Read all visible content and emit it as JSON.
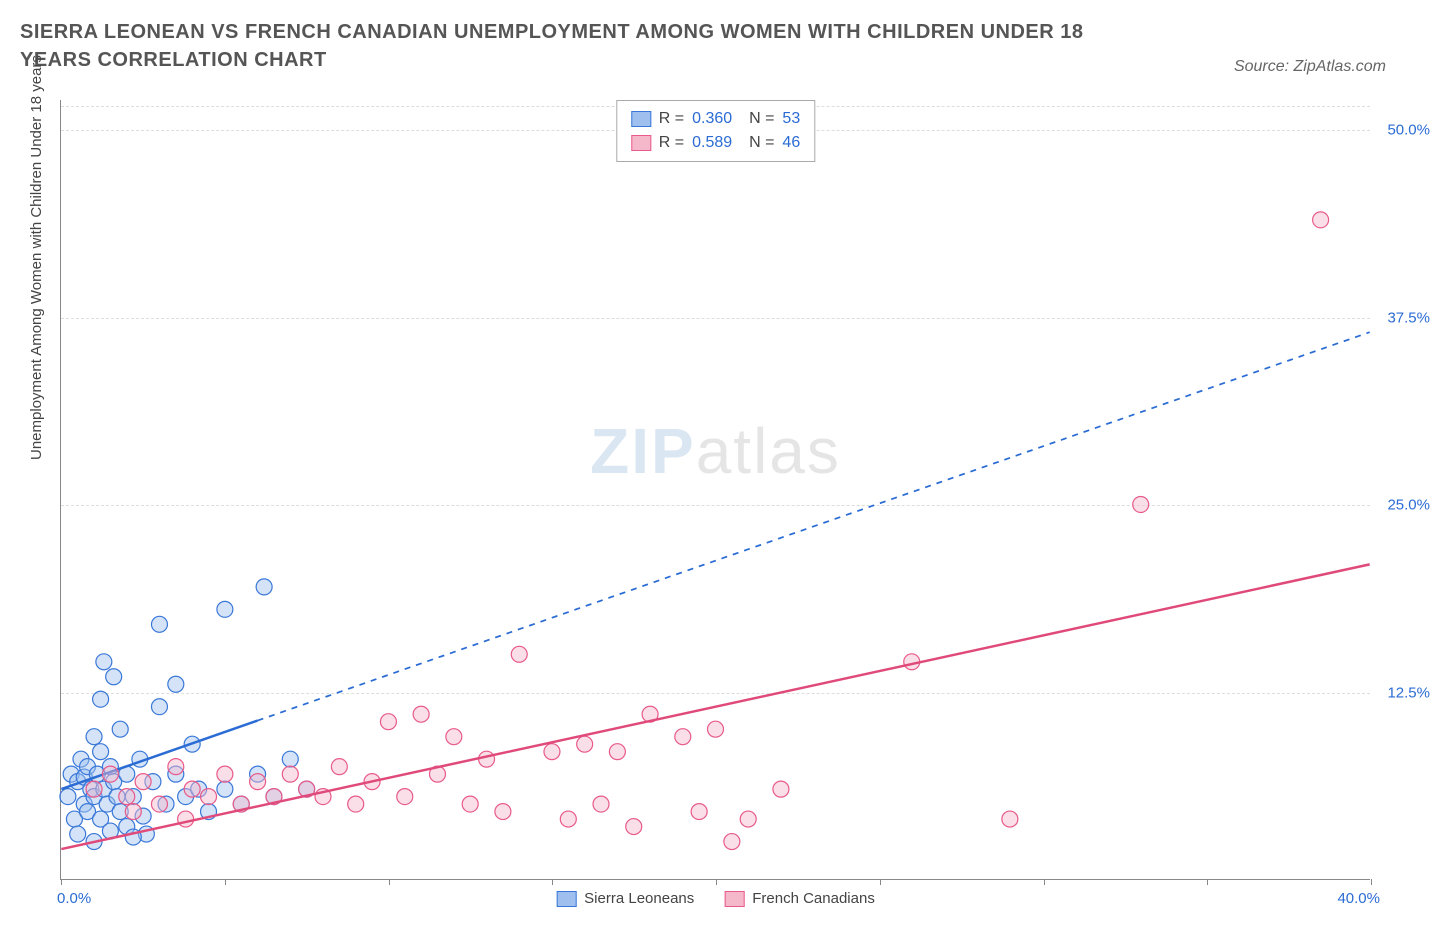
{
  "title": "SIERRA LEONEAN VS FRENCH CANADIAN UNEMPLOYMENT AMONG WOMEN WITH CHILDREN UNDER 18 YEARS CORRELATION CHART",
  "source": "Source: ZipAtlas.com",
  "ylabel": "Unemployment Among Women with Children Under 18 years",
  "watermark_bold": "ZIP",
  "watermark_light": "atlas",
  "chart": {
    "type": "scatter",
    "xlim": [
      0,
      40
    ],
    "ylim": [
      0,
      52
    ],
    "xticks": [
      0,
      5,
      10,
      15,
      20,
      25,
      30,
      35,
      40
    ],
    "yticks": [
      12.5,
      25.0,
      37.5,
      50.0
    ],
    "ytick_labels": [
      "12.5%",
      "25.0%",
      "37.5%",
      "50.0%"
    ],
    "xaxis_min_label": "0.0%",
    "xaxis_max_label": "40.0%",
    "background_color": "#ffffff",
    "grid_color": "#dddddd",
    "axis_color": "#888888",
    "watermark_color": "#cccccc",
    "series": [
      {
        "name": "Sierra Leoneans",
        "color_fill": "#9fc0ef",
        "color_stroke": "#3a78d8",
        "fill_opacity": 0.45,
        "marker_radius": 8,
        "R": "0.360",
        "N": "53",
        "trend": {
          "x1": 0,
          "y1": 6.0,
          "x2": 40,
          "y2": 36.5,
          "solid_until_x": 6.0,
          "stroke": "#2b6cd4",
          "stroke_width": 2.5
        },
        "points": [
          [
            0.2,
            5.5
          ],
          [
            0.3,
            7.0
          ],
          [
            0.4,
            4.0
          ],
          [
            0.5,
            6.5
          ],
          [
            0.5,
            3.0
          ],
          [
            0.6,
            8.0
          ],
          [
            0.7,
            5.0
          ],
          [
            0.7,
            6.8
          ],
          [
            0.8,
            4.5
          ],
          [
            0.8,
            7.5
          ],
          [
            0.9,
            6.0
          ],
          [
            1.0,
            9.5
          ],
          [
            1.0,
            5.5
          ],
          [
            1.1,
            7.0
          ],
          [
            1.2,
            4.0
          ],
          [
            1.2,
            8.5
          ],
          [
            1.3,
            6.0
          ],
          [
            1.4,
            5.0
          ],
          [
            1.5,
            7.5
          ],
          [
            1.5,
            3.2
          ],
          [
            1.6,
            6.5
          ],
          [
            1.7,
            5.5
          ],
          [
            1.8,
            4.5
          ],
          [
            1.8,
            10.0
          ],
          [
            1.2,
            12.0
          ],
          [
            1.3,
            14.5
          ],
          [
            2.0,
            7.0
          ],
          [
            2.2,
            5.5
          ],
          [
            2.4,
            8.0
          ],
          [
            2.5,
            4.2
          ],
          [
            2.6,
            3.0
          ],
          [
            2.8,
            6.5
          ],
          [
            3.0,
            11.5
          ],
          [
            3.2,
            5.0
          ],
          [
            3.5,
            13.0
          ],
          [
            3.5,
            7.0
          ],
          [
            3.8,
            5.5
          ],
          [
            4.0,
            9.0
          ],
          [
            4.2,
            6.0
          ],
          [
            4.5,
            4.5
          ],
          [
            3.0,
            17.0
          ],
          [
            5.0,
            6.0
          ],
          [
            5.0,
            18.0
          ],
          [
            5.5,
            5.0
          ],
          [
            6.0,
            7.0
          ],
          [
            6.2,
            19.5
          ],
          [
            6.5,
            5.5
          ],
          [
            7.0,
            8.0
          ],
          [
            7.5,
            6.0
          ],
          [
            2.0,
            3.5
          ],
          [
            2.2,
            2.8
          ],
          [
            1.0,
            2.5
          ],
          [
            1.6,
            13.5
          ]
        ]
      },
      {
        "name": "French Canadians",
        "color_fill": "#f5b8cb",
        "color_stroke": "#e85a8a",
        "fill_opacity": 0.45,
        "marker_radius": 8,
        "R": "0.589",
        "N": "46",
        "trend": {
          "x1": 0,
          "y1": 2.0,
          "x2": 40,
          "y2": 21.0,
          "solid_until_x": 40,
          "stroke": "#e04A7A",
          "stroke_width": 2.5
        },
        "points": [
          [
            1.0,
            6.0
          ],
          [
            1.5,
            7.0
          ],
          [
            2.0,
            5.5
          ],
          [
            2.5,
            6.5
          ],
          [
            3.0,
            5.0
          ],
          [
            3.5,
            7.5
          ],
          [
            4.0,
            6.0
          ],
          [
            4.5,
            5.5
          ],
          [
            5.0,
            7.0
          ],
          [
            5.5,
            5.0
          ],
          [
            6.0,
            6.5
          ],
          [
            6.5,
            5.5
          ],
          [
            7.0,
            7.0
          ],
          [
            7.5,
            6.0
          ],
          [
            8.0,
            5.5
          ],
          [
            8.5,
            7.5
          ],
          [
            9.0,
            5.0
          ],
          [
            9.5,
            6.5
          ],
          [
            10.0,
            10.5
          ],
          [
            10.5,
            5.5
          ],
          [
            11.0,
            11.0
          ],
          [
            11.5,
            7.0
          ],
          [
            12.0,
            9.5
          ],
          [
            12.5,
            5.0
          ],
          [
            13.0,
            8.0
          ],
          [
            14.0,
            15.0
          ],
          [
            13.5,
            4.5
          ],
          [
            15.0,
            8.5
          ],
          [
            15.5,
            4.0
          ],
          [
            16.0,
            9.0
          ],
          [
            16.5,
            5.0
          ],
          [
            17.0,
            8.5
          ],
          [
            17.5,
            3.5
          ],
          [
            18.0,
            11.0
          ],
          [
            19.0,
            9.5
          ],
          [
            19.5,
            4.5
          ],
          [
            20.0,
            10.0
          ],
          [
            21.0,
            4.0
          ],
          [
            22.0,
            6.0
          ],
          [
            20.5,
            2.5
          ],
          [
            26.0,
            14.5
          ],
          [
            29.0,
            4.0
          ],
          [
            33.0,
            25.0
          ],
          [
            38.5,
            44.0
          ],
          [
            2.2,
            4.5
          ],
          [
            3.8,
            4.0
          ]
        ]
      }
    ]
  },
  "legend_bottom": [
    {
      "label": "Sierra Leoneans",
      "fill": "#9fc0ef",
      "stroke": "#3a78d8"
    },
    {
      "label": "French Canadians",
      "fill": "#f5b8cb",
      "stroke": "#e85a8a"
    }
  ]
}
